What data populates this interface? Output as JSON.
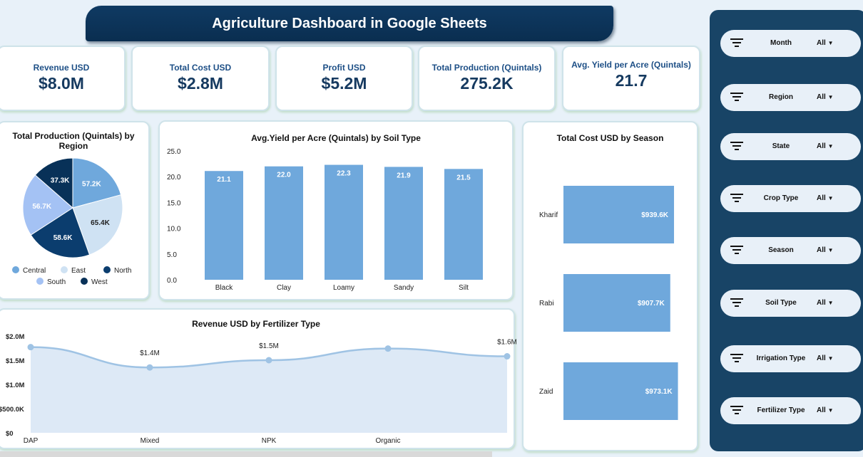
{
  "header": {
    "title": "Agriculture Dashboard in Google Sheets"
  },
  "kpis": [
    {
      "label": "Revenue USD",
      "value": "$8.0M"
    },
    {
      "label": "Total Cost USD",
      "value": "$2.8M"
    },
    {
      "label": "Profit USD",
      "value": "$5.2M"
    },
    {
      "label": "Total Production (Quintals)",
      "value": "275.2K"
    },
    {
      "label": "Avg. Yield per Acre (Quintals)",
      "value": "21.7"
    }
  ],
  "filters": [
    {
      "label": "Month",
      "value": "All"
    },
    {
      "label": "Region",
      "value": "All"
    },
    {
      "label": "State",
      "value": "All"
    },
    {
      "label": "Crop Type",
      "value": "All"
    },
    {
      "label": "Season",
      "value": "All"
    },
    {
      "label": "Soil Type",
      "value": "All"
    },
    {
      "label": "Irrigation Type",
      "value": "All"
    },
    {
      "label": "Fertilizer Type",
      "value": "All"
    }
  ],
  "chart_data": [
    {
      "type": "pie",
      "title": "Total Production (Quintals) by Region",
      "legend": "bottom",
      "categories": [
        "Central",
        "East",
        "North",
        "South",
        "West"
      ],
      "values": [
        57.2,
        65.4,
        58.6,
        56.7,
        37.3
      ],
      "labels": [
        "57.2K",
        "65.4K",
        "58.6K",
        "56.7K",
        "37.3K"
      ],
      "colors": [
        "#6fa8dc",
        "#cfe2f3",
        "#0b3d6e",
        "#a4c2f4",
        "#083158"
      ]
    },
    {
      "type": "bar",
      "title": "Avg.Yield per Acre (Quintals) by Soil Type",
      "categories": [
        "Black",
        "Clay",
        "Loamy",
        "Sandy",
        "Silt"
      ],
      "values": [
        21.1,
        22.0,
        22.3,
        21.9,
        21.5
      ],
      "labels": [
        "21.1",
        "22.0",
        "22.3",
        "21.9",
        "21.5"
      ],
      "ylim": [
        0,
        25
      ],
      "yticks": [
        "0.0",
        "5.0",
        "10.0",
        "15.0",
        "20.0",
        "25.0"
      ],
      "color": "#6fa8dc"
    },
    {
      "type": "bar",
      "orientation": "horizontal",
      "title": "Total Cost USD by Season",
      "categories": [
        "Kharif",
        "Rabi",
        "Zaid"
      ],
      "values": [
        939.6,
        907.7,
        973.1
      ],
      "labels": [
        "$939.6K",
        "$907.7K",
        "$973.1K"
      ],
      "color": "#6fa8dc"
    },
    {
      "type": "area",
      "title": "Revenue USD by Fertilizer Type",
      "categories": [
        "DAP",
        "Mixed",
        "NPK",
        "Organic",
        ""
      ],
      "values": [
        1.77,
        1.35,
        1.5,
        1.74,
        1.58
      ],
      "labels": [
        "",
        "$1.4M",
        "$1.5M",
        "",
        "$1.6M"
      ],
      "ylim": [
        0,
        2
      ],
      "yticks": [
        "$0",
        "$500.0K",
        "$1.0M",
        "$1.5M",
        "$2.0M"
      ],
      "color": "#9fc3e4"
    }
  ]
}
